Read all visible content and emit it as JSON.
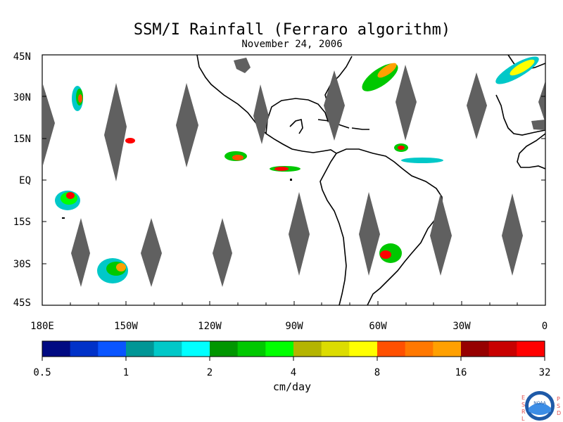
{
  "header": {
    "title": "SSM/I Rainfall (Ferraro algorithm)",
    "date": "November 24, 2006"
  },
  "axes": {
    "lat_labels": [
      "45N",
      "30N",
      "15N",
      "EQ",
      "15S",
      "30S",
      "45S"
    ],
    "lon_labels": [
      "180E",
      "150W",
      "120W",
      "90W",
      "60W",
      "30W",
      "0"
    ]
  },
  "colorbar": {
    "ticks": [
      "0.5",
      "1",
      "2",
      "4",
      "8",
      "16",
      "32"
    ],
    "units": "cm/day",
    "colors": [
      "#000a82",
      "#0032c8",
      "#0a55ff",
      "#009696",
      "#00c8c8",
      "#00ffff",
      "#009600",
      "#00c800",
      "#00ff00",
      "#b4b400",
      "#dcdc00",
      "#ffff00",
      "#ff5000",
      "#ff7800",
      "#ffa000",
      "#960000",
      "#c80000",
      "#ff0000"
    ]
  },
  "logo": {
    "left_letters": [
      "E",
      "S",
      "R",
      "L"
    ],
    "right_letters": [
      "P",
      "S",
      "D"
    ],
    "badge": "NOAA"
  },
  "map_meta": {
    "lat_range": [
      -45,
      45
    ],
    "lon_range": [
      -180,
      0
    ],
    "data_gap_color": "#606060",
    "land_outline_color": "#000000"
  }
}
